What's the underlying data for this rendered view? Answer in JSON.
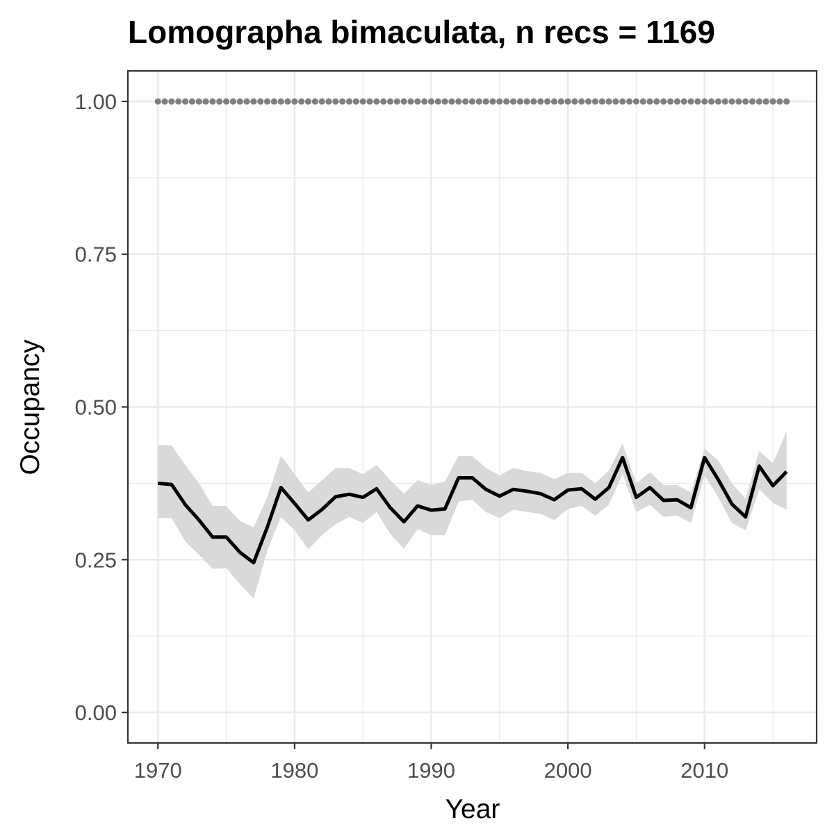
{
  "chart_data": {
    "type": "line",
    "title": "Lomographa bimaculata, n recs = 1169",
    "xlabel": "Year",
    "ylabel": "Occupancy",
    "xlim": [
      1967.8,
      2018.2
    ],
    "ylim": [
      -0.05,
      1.05
    ],
    "x_ticks": [
      1970,
      1980,
      1990,
      2000,
      2010
    ],
    "x_tick_labels": [
      "1970",
      "1980",
      "1990",
      "2000",
      "2010"
    ],
    "y_ticks": [
      0,
      0.25,
      0.5,
      0.75,
      1
    ],
    "y_tick_labels": [
      "0.00",
      "0.25",
      "0.50",
      "0.75",
      "1.00"
    ],
    "grid": true,
    "legend": "none",
    "x": [
      1970,
      1971,
      1972,
      1973,
      1974,
      1975,
      1976,
      1977,
      1978,
      1979,
      1980,
      1981,
      1982,
      1983,
      1984,
      1985,
      1986,
      1987,
      1988,
      1989,
      1990,
      1991,
      1992,
      1993,
      1994,
      1995,
      1996,
      1997,
      1998,
      1999,
      2000,
      2001,
      2002,
      2003,
      2004,
      2005,
      2006,
      2007,
      2008,
      2009,
      2010,
      2011,
      2012,
      2013,
      2014,
      2015,
      2016
    ],
    "series": [
      {
        "role": "mean",
        "color": "#000000",
        "values": [
          0.375,
          0.373,
          0.34,
          0.315,
          0.287,
          0.287,
          0.262,
          0.245,
          0.303,
          0.368,
          0.342,
          0.315,
          0.332,
          0.353,
          0.357,
          0.352,
          0.366,
          0.335,
          0.312,
          0.338,
          0.331,
          0.333,
          0.384,
          0.384,
          0.365,
          0.354,
          0.365,
          0.362,
          0.358,
          0.348,
          0.364,
          0.366,
          0.349,
          0.368,
          0.417,
          0.352,
          0.368,
          0.347,
          0.348,
          0.335,
          0.417,
          0.381,
          0.341,
          0.32,
          0.403,
          0.371,
          0.394
        ]
      },
      {
        "role": "ci-lower",
        "color": "#d9d9d9",
        "values": [
          0.318,
          0.318,
          0.28,
          0.258,
          0.235,
          0.236,
          0.21,
          0.186,
          0.265,
          0.32,
          0.298,
          0.267,
          0.29,
          0.308,
          0.32,
          0.31,
          0.328,
          0.292,
          0.268,
          0.3,
          0.29,
          0.29,
          0.345,
          0.348,
          0.328,
          0.318,
          0.332,
          0.328,
          0.325,
          0.315,
          0.333,
          0.338,
          0.322,
          0.34,
          0.39,
          0.328,
          0.34,
          0.32,
          0.322,
          0.31,
          0.388,
          0.352,
          0.31,
          0.298,
          0.365,
          0.343,
          0.332
        ]
      },
      {
        "role": "ci-upper",
        "color": "#d9d9d9",
        "values": [
          0.438,
          0.437,
          0.405,
          0.375,
          0.338,
          0.338,
          0.313,
          0.303,
          0.352,
          0.42,
          0.39,
          0.36,
          0.38,
          0.4,
          0.4,
          0.39,
          0.405,
          0.38,
          0.358,
          0.38,
          0.372,
          0.378,
          0.42,
          0.42,
          0.4,
          0.388,
          0.4,
          0.395,
          0.392,
          0.382,
          0.392,
          0.392,
          0.375,
          0.396,
          0.44,
          0.375,
          0.393,
          0.372,
          0.372,
          0.36,
          0.432,
          0.412,
          0.375,
          0.35,
          0.428,
          0.408,
          0.46
        ]
      },
      {
        "role": "reference",
        "color": "#7f7f7f",
        "values": [
          1,
          1,
          1,
          1,
          1,
          1,
          1,
          1,
          1,
          1,
          1,
          1,
          1,
          1,
          1,
          1,
          1,
          1,
          1,
          1,
          1,
          1,
          1,
          1,
          1,
          1,
          1,
          1,
          1,
          1,
          1,
          1,
          1,
          1,
          1,
          1,
          1,
          1,
          1,
          1,
          1,
          1,
          1,
          1,
          1,
          1,
          1
        ]
      }
    ]
  }
}
